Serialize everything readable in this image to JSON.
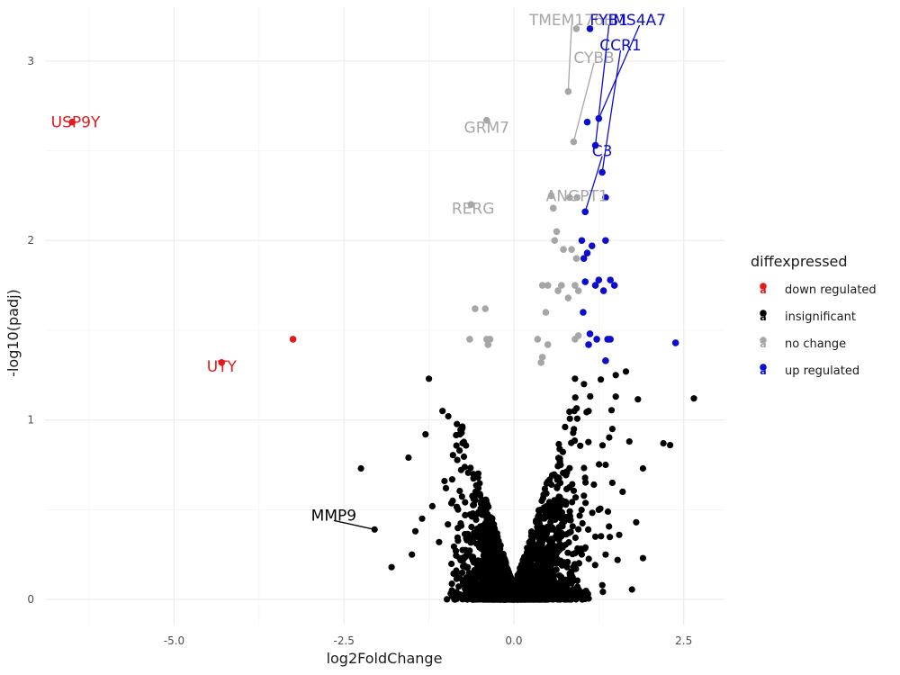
{
  "chart_data": {
    "type": "scatter",
    "title": "",
    "xlabel": "log2FoldChange",
    "ylabel": "-log10(padj)",
    "xlim": [
      -6.9,
      3.1
    ],
    "ylim": [
      -0.14,
      3.3
    ],
    "x_ticks": [
      -5.0,
      -2.5,
      0.0,
      2.5
    ],
    "x_tick_labels": [
      "-5.0",
      "-2.5",
      "0.0",
      "2.5"
    ],
    "y_ticks": [
      0,
      1,
      2,
      3
    ],
    "y_tick_labels": [
      "0",
      "1",
      "2",
      "3"
    ],
    "grid": true,
    "legend": {
      "title": "diffexpressed",
      "position": "right",
      "entries": [
        {
          "label": "down regulated",
          "color": "#e31a1c"
        },
        {
          "label": "insignificant",
          "color": "#000000"
        },
        {
          "label": "no change",
          "color": "#a6a6a6"
        },
        {
          "label": "up regulated",
          "color": "#0d0dcc"
        }
      ]
    },
    "series": [
      {
        "name": "down regulated",
        "color": "#e31a1c",
        "points": [
          [
            -6.5,
            2.66
          ],
          [
            -3.25,
            1.45
          ],
          [
            -4.3,
            1.32
          ]
        ]
      },
      {
        "name": "no change",
        "color": "#a6a6a6",
        "points": [
          [
            0.92,
            3.18
          ],
          [
            0.8,
            2.83
          ],
          [
            0.88,
            2.55
          ],
          [
            -0.4,
            2.67
          ],
          [
            -0.63,
            2.2
          ],
          [
            0.55,
            2.25
          ],
          [
            0.58,
            2.18
          ],
          [
            0.82,
            2.24
          ],
          [
            0.93,
            2.24
          ],
          [
            0.63,
            2.05
          ],
          [
            0.6,
            2.0
          ],
          [
            0.73,
            1.95
          ],
          [
            0.85,
            1.95
          ],
          [
            0.92,
            1.9
          ],
          [
            0.5,
            1.75
          ],
          [
            0.42,
            1.75
          ],
          [
            0.7,
            1.75
          ],
          [
            0.65,
            1.72
          ],
          [
            0.9,
            1.75
          ],
          [
            0.95,
            1.72
          ],
          [
            0.8,
            1.68
          ],
          [
            -0.42,
            1.62
          ],
          [
            -0.57,
            1.62
          ],
          [
            0.47,
            1.6
          ],
          [
            -0.65,
            1.45
          ],
          [
            -0.4,
            1.45
          ],
          [
            -0.35,
            1.45
          ],
          [
            -0.38,
            1.42
          ],
          [
            0.35,
            1.45
          ],
          [
            0.5,
            1.42
          ],
          [
            0.95,
            1.47
          ],
          [
            0.9,
            1.45
          ],
          [
            0.42,
            1.35
          ],
          [
            0.4,
            1.32
          ]
        ]
      },
      {
        "name": "up regulated",
        "color": "#0d0dcc",
        "points": [
          [
            1.12,
            3.18
          ],
          [
            1.25,
            2.68
          ],
          [
            1.08,
            2.66
          ],
          [
            1.2,
            2.53
          ],
          [
            1.3,
            2.38
          ],
          [
            1.05,
            2.16
          ],
          [
            1.35,
            2.24
          ],
          [
            1.0,
            2.0
          ],
          [
            1.15,
            1.97
          ],
          [
            1.35,
            2.0
          ],
          [
            1.08,
            1.93
          ],
          [
            1.03,
            1.9
          ],
          [
            1.05,
            1.77
          ],
          [
            1.25,
            1.78
          ],
          [
            1.42,
            1.78
          ],
          [
            1.2,
            1.75
          ],
          [
            1.48,
            1.75
          ],
          [
            1.32,
            1.72
          ],
          [
            1.02,
            1.6
          ],
          [
            1.12,
            1.48
          ],
          [
            1.22,
            1.45
          ],
          [
            1.38,
            1.45
          ],
          [
            1.42,
            1.45
          ],
          [
            1.1,
            1.42
          ],
          [
            2.38,
            1.43
          ],
          [
            1.35,
            1.33
          ]
        ]
      },
      {
        "name": "insignificant",
        "color": "#000000",
        "points": []
      }
    ],
    "annotations": [
      {
        "label": "USP9Y",
        "x": -6.5,
        "y": 2.66,
        "color": "#e31a1c",
        "tx": -6.45,
        "ty": 2.66,
        "leader": false
      },
      {
        "label": "UTY",
        "x": -4.3,
        "y": 1.32,
        "color": "#e31a1c",
        "tx": -4.3,
        "ty": 1.3,
        "leader": false
      },
      {
        "label": "GRM7",
        "x": -0.4,
        "y": 2.67,
        "color": "#a6a6a6",
        "tx": -0.4,
        "ty": 2.63,
        "leader": false
      },
      {
        "label": "RERG",
        "x": -0.63,
        "y": 2.2,
        "color": "#a6a6a6",
        "tx": -0.6,
        "ty": 2.18,
        "leader": false
      },
      {
        "label": "ANGPT1",
        "x": 0.93,
        "y": 2.24,
        "color": "#a6a6a6",
        "tx": 0.93,
        "ty": 2.25,
        "leader": false
      },
      {
        "label": "CYBB",
        "x": 0.88,
        "y": 2.55,
        "color": "#a6a6a6",
        "tx": 1.18,
        "ty": 3.02,
        "leader": true
      },
      {
        "label": "TMEM176B",
        "x": 0.8,
        "y": 2.83,
        "color": "#a6a6a6",
        "tx": 0.85,
        "ty": 3.23,
        "leader": true
      },
      {
        "label": "FYB1",
        "x": 1.2,
        "y": 2.53,
        "color": "#0d0dcc",
        "tx": 1.4,
        "ty": 3.23,
        "leader": true
      },
      {
        "label": "MS4A7",
        "x": 1.25,
        "y": 2.68,
        "color": "#0d0dcc",
        "tx": 1.85,
        "ty": 3.23,
        "leader": true
      },
      {
        "label": "CCR1",
        "x": 1.3,
        "y": 2.38,
        "color": "#0d0dcc",
        "tx": 1.57,
        "ty": 3.09,
        "leader": true
      },
      {
        "label": "C3",
        "x": 1.05,
        "y": 2.16,
        "color": "#0d0dcc",
        "tx": 1.3,
        "ty": 2.5,
        "leader": true
      },
      {
        "label": "MMP9",
        "x": -2.05,
        "y": 0.39,
        "color": "#000000",
        "tx": -2.65,
        "ty": 0.47,
        "leader": true
      }
    ]
  }
}
